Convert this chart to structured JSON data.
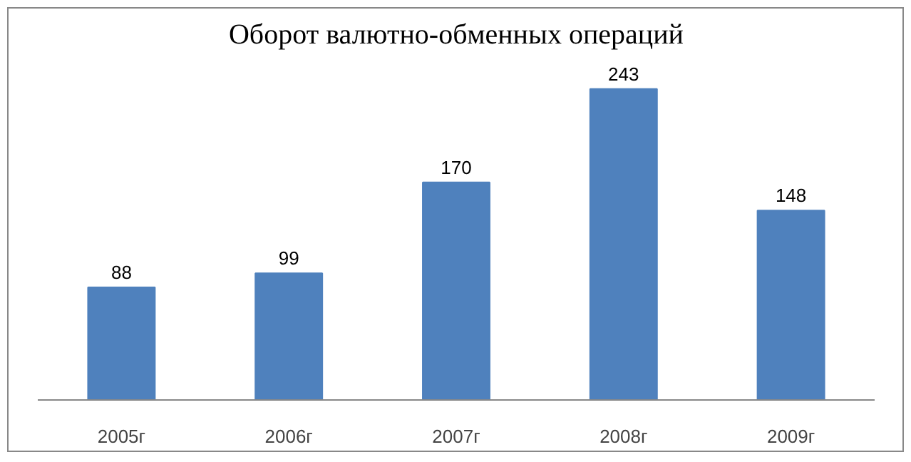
{
  "chart_data": {
    "type": "bar",
    "title": "Оборот валютно-обменных операций",
    "categories": [
      "2005г",
      "2006г",
      "2007г",
      "2008г",
      "2009г"
    ],
    "values": [
      88,
      99,
      170,
      243,
      148
    ],
    "color": "#4f81bd",
    "data_labels": true,
    "grid": false
  }
}
